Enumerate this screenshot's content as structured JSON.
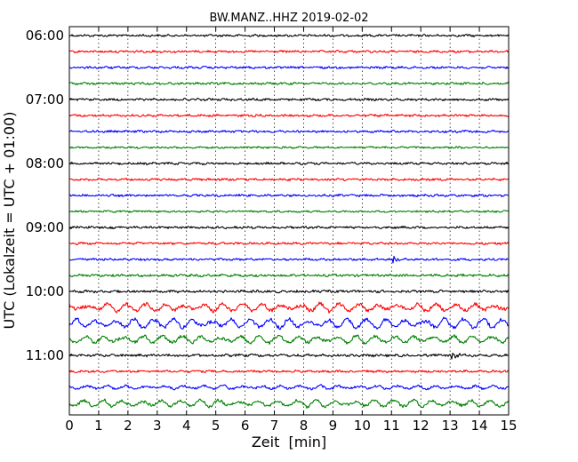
{
  "chart_data": {
    "type": "line",
    "title": "BW.MANZ..HHZ 2019-02-02",
    "xlabel": "Zeit  [min]",
    "ylabel": "UTC (Lokalzeit = UTC + 01:00)",
    "xlim": [
      0,
      15
    ],
    "x_ticks": [
      "0",
      "1",
      "2",
      "3",
      "4",
      "5",
      "6",
      "7",
      "8",
      "9",
      "10",
      "11",
      "12",
      "13",
      "14",
      "15"
    ],
    "y_ticks": [
      "06:00",
      "07:00",
      "08:00",
      "09:00",
      "10:00",
      "11:00"
    ],
    "grid": "vertical dotted",
    "trace_colors": [
      "#000000",
      "#ff0000",
      "#0000ff",
      "#008000"
    ],
    "traces": [
      {
        "start": "06:00",
        "color": "#000000",
        "amplitude": 0.35
      },
      {
        "start": "06:15",
        "color": "#ff0000",
        "amplitude": 0.35
      },
      {
        "start": "06:30",
        "color": "#0000ff",
        "amplitude": 0.35
      },
      {
        "start": "06:45",
        "color": "#008000",
        "amplitude": 0.35
      },
      {
        "start": "07:00",
        "color": "#000000",
        "amplitude": 0.35
      },
      {
        "start": "07:15",
        "color": "#ff0000",
        "amplitude": 0.35
      },
      {
        "start": "07:30",
        "color": "#0000ff",
        "amplitude": 0.35
      },
      {
        "start": "07:45",
        "color": "#008000",
        "amplitude": 0.3
      },
      {
        "start": "08:00",
        "color": "#000000",
        "amplitude": 0.35
      },
      {
        "start": "08:15",
        "color": "#ff0000",
        "amplitude": 0.35
      },
      {
        "start": "08:30",
        "color": "#0000ff",
        "amplitude": 0.35
      },
      {
        "start": "08:45",
        "color": "#008000",
        "amplitude": 0.3
      },
      {
        "start": "09:00",
        "color": "#000000",
        "amplitude": 0.35
      },
      {
        "start": "09:15",
        "color": "#ff0000",
        "amplitude": 0.35
      },
      {
        "start": "09:30",
        "color": "#0000ff",
        "amplitude": 0.35,
        "event_min": 11.1
      },
      {
        "start": "09:45",
        "color": "#008000",
        "amplitude": 0.4
      },
      {
        "start": "10:00",
        "color": "#000000",
        "amplitude": 0.4
      },
      {
        "start": "10:15",
        "color": "#ff0000",
        "amplitude": 0.6,
        "swell": 0.9
      },
      {
        "start": "10:30",
        "color": "#0000ff",
        "amplitude": 0.6,
        "swell": 1.1
      },
      {
        "start": "10:45",
        "color": "#008000",
        "amplitude": 0.55,
        "swell": 0.9
      },
      {
        "start": "11:00",
        "color": "#000000",
        "amplitude": 0.4,
        "event_min": 13.1
      },
      {
        "start": "11:15",
        "color": "#ff0000",
        "amplitude": 0.35
      },
      {
        "start": "11:30",
        "color": "#0000ff",
        "amplitude": 0.4,
        "swell": 0.4
      },
      {
        "start": "11:45",
        "color": "#008000",
        "amplitude": 0.5,
        "swell": 0.8
      }
    ]
  }
}
